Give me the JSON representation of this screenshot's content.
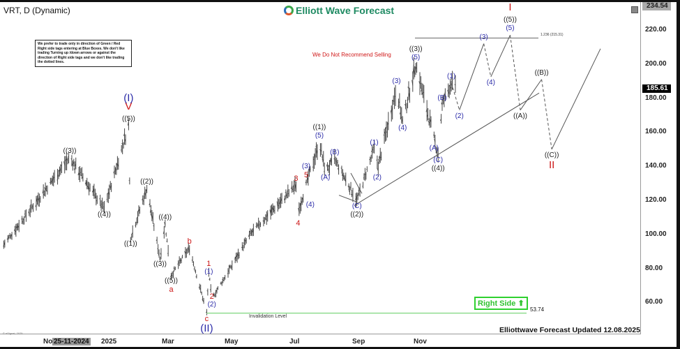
{
  "header": {
    "symbol": "VRT, D (Dynamic)",
    "logo_text": "Elliott Wave Forecast"
  },
  "note": "We prefer to trade only in direction of Green / Red Right side tags entering at Blue Boxes. We don't like trading Turning up /down arrows or against the direction of Right side tags and we don't like trading the dotted lines.",
  "warning": "We Do Not Recommend Selling",
  "invalidation_label": "Invalidation Level",
  "invalidation_value": "53.74",
  "right_side": {
    "label": "Right Side",
    "icon": "arrow-up-icon",
    "color": "#2fd02f"
  },
  "footer": {
    "updated": "Elliottwave Forecast Updated 12.08.2025",
    "copyright": "© eSignal, 2025"
  },
  "fib_label": "1.236 (215.31)",
  "price_tags": {
    "high": "234.54",
    "current": "185.61"
  },
  "x_axis": {
    "labels": [
      "No",
      "2025",
      "Mar",
      "May",
      "Jul",
      "Sep",
      "Nov"
    ],
    "cursor_date": "25-11-2024"
  },
  "colors": {
    "blue": "#2b2ba8",
    "red": "#cc1616",
    "black": "#222222",
    "green": "#8fdc8f"
  },
  "chart_data": {
    "type": "ohlc",
    "ylim": [
      48,
      236
    ],
    "y_ticks": [
      60,
      80,
      100,
      120,
      140,
      160,
      180,
      200,
      220
    ],
    "y_tick_labels": [
      "60.00",
      "80.00",
      "100.00",
      "120.00",
      "140.00",
      "160.00",
      "180.00",
      "200.00",
      "220.00"
    ],
    "grid": false,
    "current_price": 185.61,
    "invalidation": 53.74,
    "fib_level": 215.31,
    "price_pivots": [
      [
        "2024-09-19",
        94
      ],
      [
        "2024-11-23",
        145
      ],
      [
        "2024-12-27",
        115
      ],
      [
        "2025-01-20",
        164
      ],
      [
        "2025-01-22",
        98
      ],
      [
        "2025-02-07",
        127
      ],
      [
        "2025-02-20",
        86
      ],
      [
        "2025-02-25",
        106
      ],
      [
        "2025-03-03",
        76
      ],
      [
        "2025-03-21",
        92
      ],
      [
        "2025-04-07",
        54
      ],
      [
        "2025-04-09",
        78
      ],
      [
        "2025-04-12",
        62
      ],
      [
        "2025-05-20",
        100
      ],
      [
        "2025-07-04",
        129
      ],
      [
        "2025-07-06",
        113
      ],
      [
        "2025-07-15",
        131
      ],
      [
        "2025-07-27",
        154
      ],
      [
        "2025-08-02",
        137
      ],
      [
        "2025-08-11",
        144
      ],
      [
        "2025-09-02",
        120
      ],
      [
        "2025-09-19",
        150
      ],
      [
        "2025-09-23",
        140
      ],
      [
        "2025-10-11",
        186
      ],
      [
        "2025-10-17",
        166
      ],
      [
        "2025-10-30",
        200
      ],
      [
        "2025-11-18",
        154
      ],
      [
        "2025-11-25",
        176
      ],
      [
        "2025-11-21",
        147
      ],
      [
        "2025-12-04",
        189
      ],
      [
        "2025-12-08",
        185.61
      ]
    ],
    "projection": [
      {
        "date": "2025-12-04",
        "price": 189,
        "style": "dashed"
      },
      {
        "date": "2025-12-12",
        "price": 173,
        "style": "solid"
      },
      {
        "date": "2026-01-05",
        "price": 212,
        "style": "dashed"
      },
      {
        "date": "2026-01-12",
        "price": 192.5,
        "style": "solid"
      },
      {
        "date": "2026-01-31",
        "price": 217,
        "style": "dashed"
      },
      {
        "date": "2026-02-10",
        "price": 173,
        "style": "solid"
      },
      {
        "date": "2026-03-03",
        "price": 191,
        "style": "dashed"
      },
      {
        "date": "2026-03-13",
        "price": 150,
        "style": "solid"
      },
      {
        "date": "2026-04-30",
        "price": 209,
        "style": "end"
      }
    ],
    "wave_labels": [
      {
        "text": "((3))",
        "color": "black",
        "date": "2024-11-23",
        "price": 145,
        "side": "above",
        "level": 0
      },
      {
        "text": "((4))",
        "color": "black",
        "date": "2024-12-27",
        "price": 115,
        "side": "below",
        "level": 0
      },
      {
        "text": "((5))",
        "color": "black",
        "date": "2025-01-20",
        "price": 164,
        "side": "above",
        "level": 0
      },
      {
        "text": "V",
        "color": "red",
        "date": "2025-01-20",
        "price": 164,
        "side": "above",
        "level": 1
      },
      {
        "text": "(I)",
        "color": "blue",
        "date": "2025-01-20",
        "price": 164,
        "side": "above",
        "level": 2
      },
      {
        "text": "((1))",
        "color": "black",
        "date": "2025-01-22",
        "price": 98,
        "side": "below",
        "level": 0
      },
      {
        "text": "((2))",
        "color": "black",
        "date": "2025-02-07",
        "price": 127,
        "side": "above",
        "level": 0
      },
      {
        "text": "((3))",
        "color": "black",
        "date": "2025-02-20",
        "price": 86,
        "side": "below",
        "level": 0
      },
      {
        "text": "((4))",
        "color": "black",
        "date": "2025-02-25",
        "price": 106,
        "side": "above",
        "level": 0
      },
      {
        "text": "((5))",
        "color": "black",
        "date": "2025-03-03",
        "price": 76,
        "side": "below",
        "level": 0
      },
      {
        "text": "a",
        "color": "red",
        "date": "2025-03-03",
        "price": 76,
        "side": "below",
        "level": 1
      },
      {
        "text": "b",
        "color": "red",
        "date": "2025-03-21",
        "price": 92,
        "side": "above",
        "level": 0
      },
      {
        "text": "(1)",
        "color": "blue",
        "date": "2025-04-09",
        "price": 74,
        "side": "above",
        "level": 0
      },
      {
        "text": "1",
        "color": "red",
        "date": "2025-04-09",
        "price": 74,
        "side": "above",
        "level": 1
      },
      {
        "text": "2",
        "color": "red",
        "date": "2025-04-12",
        "price": 67,
        "side": "below",
        "level": 0
      },
      {
        "text": "(2)",
        "color": "blue",
        "date": "2025-04-12",
        "price": 67,
        "side": "below",
        "level": 1
      },
      {
        "text": "c",
        "color": "red",
        "date": "2025-04-07",
        "price": 54,
        "side": "below",
        "level": 0
      },
      {
        "text": "(II)",
        "color": "blue",
        "date": "2025-04-07",
        "price": 54,
        "side": "below",
        "level": 1
      },
      {
        "text": "3",
        "color": "red",
        "date": "2025-07-04",
        "price": 129,
        "side": "above",
        "level": 0
      },
      {
        "text": "4",
        "color": "red",
        "date": "2025-07-06",
        "price": 110,
        "side": "below",
        "level": 0
      },
      {
        "text": "5",
        "color": "red",
        "date": "2025-07-14",
        "price": 131,
        "side": "above",
        "level": 0
      },
      {
        "text": "(3)",
        "color": "blue",
        "date": "2025-07-14",
        "price": 131,
        "side": "above",
        "level": 1
      },
      {
        "text": "(4)",
        "color": "blue",
        "date": "2025-07-18",
        "price": 121,
        "side": "below",
        "level": 0
      },
      {
        "text": "(5)",
        "color": "blue",
        "date": "2025-07-27",
        "price": 154,
        "side": "above",
        "level": 0
      },
      {
        "text": "((1))",
        "color": "black",
        "date": "2025-07-27",
        "price": 154,
        "side": "above",
        "level": 1
      },
      {
        "text": "(A)",
        "color": "blue",
        "date": "2025-08-02",
        "price": 137,
        "side": "below",
        "level": 0
      },
      {
        "text": "(B)",
        "color": "blue",
        "date": "2025-08-11",
        "price": 144,
        "side": "above",
        "level": 0
      },
      {
        "text": "(C)",
        "color": "blue",
        "date": "2025-09-02",
        "price": 120,
        "side": "below",
        "level": 0
      },
      {
        "text": "((2))",
        "color": "black",
        "date": "2025-09-02",
        "price": 120,
        "side": "below",
        "level": 1
      },
      {
        "text": "(1)",
        "color": "blue",
        "date": "2025-09-19",
        "price": 150,
        "side": "above",
        "level": 0
      },
      {
        "text": "(2)",
        "color": "blue",
        "date": "2025-09-22",
        "price": 137,
        "side": "below",
        "level": 0
      },
      {
        "text": "(3)",
        "color": "blue",
        "date": "2025-10-11",
        "price": 186,
        "side": "above",
        "level": 0
      },
      {
        "text": "(4)",
        "color": "blue",
        "date": "2025-10-17",
        "price": 166,
        "side": "below",
        "level": 0
      },
      {
        "text": "(5)",
        "color": "blue",
        "date": "2025-10-30",
        "price": 200,
        "side": "above",
        "level": 0
      },
      {
        "text": "((3))",
        "color": "black",
        "date": "2025-10-30",
        "price": 200,
        "side": "above",
        "level": 1
      },
      {
        "text": "(A)",
        "color": "blue",
        "date": "2025-11-17",
        "price": 154,
        "side": "below",
        "level": 0
      },
      {
        "text": "(B)",
        "color": "blue",
        "date": "2025-11-25",
        "price": 176,
        "side": "above",
        "level": 0
      },
      {
        "text": "(C)",
        "color": "blue",
        "date": "2025-11-21",
        "price": 147,
        "side": "below",
        "level": 0
      },
      {
        "text": "((4))",
        "color": "black",
        "date": "2025-11-21",
        "price": 147,
        "side": "below",
        "level": 1
      },
      {
        "text": "(1)",
        "color": "blue",
        "date": "2025-12-04",
        "price": 189,
        "side": "above",
        "level": 0
      },
      {
        "text": "(2)",
        "color": "blue",
        "date": "2025-12-12",
        "price": 173,
        "side": "below",
        "level": 0
      },
      {
        "text": "(3)",
        "color": "blue",
        "date": "2026-01-05",
        "price": 212,
        "side": "above",
        "level": 0
      },
      {
        "text": "(4)",
        "color": "blue",
        "date": "2026-01-12",
        "price": 192.5,
        "side": "below",
        "level": 0
      },
      {
        "text": "(5)",
        "color": "blue",
        "date": "2026-01-31",
        "price": 217,
        "side": "above",
        "level": 0
      },
      {
        "text": "((5))",
        "color": "black",
        "date": "2026-01-31",
        "price": 217,
        "side": "above",
        "level": 1
      },
      {
        "text": "I",
        "color": "red",
        "date": "2026-01-31",
        "price": 217,
        "side": "above",
        "level": 2
      },
      {
        "text": "((A))",
        "color": "black",
        "date": "2026-02-10",
        "price": 173,
        "side": "below",
        "level": 0
      },
      {
        "text": "((B))",
        "color": "black",
        "date": "2026-03-03",
        "price": 191,
        "side": "above",
        "level": 0
      },
      {
        "text": "((C))",
        "color": "black",
        "date": "2026-03-13",
        "price": 150,
        "side": "below",
        "level": 0
      },
      {
        "text": "II",
        "color": "red",
        "date": "2026-03-13",
        "price": 150,
        "side": "below",
        "level": 1
      }
    ]
  }
}
